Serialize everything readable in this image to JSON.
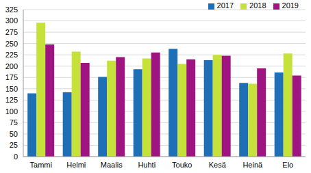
{
  "chart_data": {
    "type": "bar",
    "categories": [
      "Tammi",
      "Helmi",
      "Maalis",
      "Huhti",
      "Touko",
      "Kesä",
      "Heinä",
      "Elo"
    ],
    "series": [
      {
        "name": "2017",
        "color": "#1f6fb6",
        "values": [
          140,
          142,
          176,
          193,
          238,
          213,
          163,
          186
        ]
      },
      {
        "name": "2018",
        "color": "#c6e13a",
        "values": [
          296,
          232,
          212,
          217,
          205,
          225,
          161,
          228
        ]
      },
      {
        "name": "2019",
        "color": "#9e1581",
        "values": [
          248,
          207,
          220,
          230,
          215,
          223,
          195,
          179
        ]
      }
    ],
    "ylim": [
      0,
      325
    ],
    "yticks": [
      0,
      25,
      50,
      75,
      100,
      125,
      150,
      175,
      200,
      225,
      250,
      275,
      300,
      325
    ],
    "grid": true,
    "legend": "upper right"
  }
}
